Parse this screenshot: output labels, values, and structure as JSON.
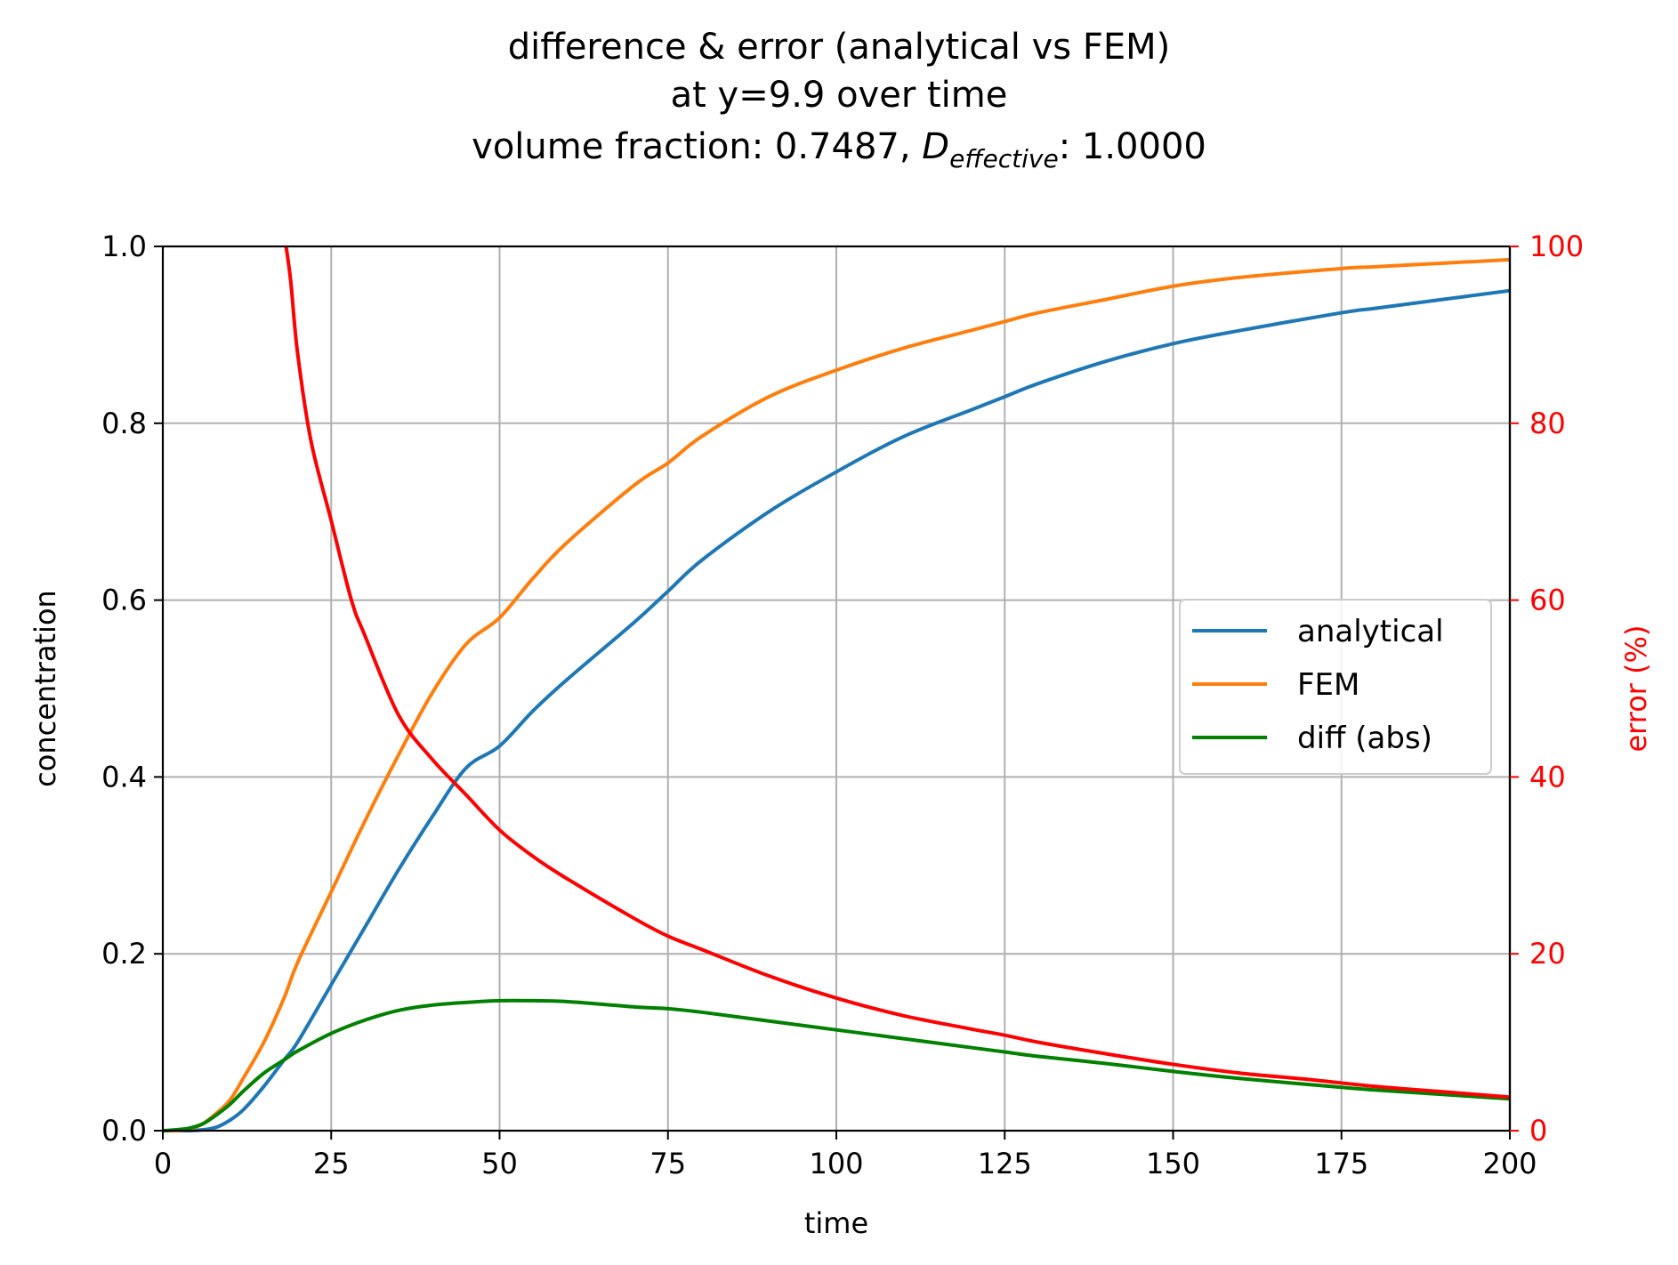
{
  "chart_data": {
    "type": "line",
    "title": {
      "line1": "difference & error (analytical vs FEM)",
      "line2": "at y=9.9 over time",
      "line3_prefix": "volume fraction: 0.7487, ",
      "line3_symbol": "D",
      "line3_subscript": "effective",
      "line3_suffix": ": 1.0000"
    },
    "xlabel": "time",
    "ylabel": "concentration",
    "y2label": "error (%)",
    "xlim": [
      0,
      200
    ],
    "ylim": [
      0,
      1
    ],
    "y2lim": [
      0,
      100
    ],
    "x_ticks": [
      "0",
      "25",
      "50",
      "75",
      "100",
      "125",
      "150",
      "175",
      "200"
    ],
    "y_ticks": [
      "0.0",
      "0.2",
      "0.4",
      "0.6",
      "0.8",
      "1.0"
    ],
    "y2_ticks": [
      "0",
      "20",
      "40",
      "60",
      "80",
      "100"
    ],
    "grid": true,
    "legend_position": "center-right",
    "x": [
      0,
      2,
      4,
      6,
      8,
      10,
      12,
      15,
      18,
      20,
      25,
      30,
      35,
      40,
      45,
      50,
      55,
      60,
      70,
      75,
      80,
      90,
      100,
      110,
      120,
      125,
      130,
      140,
      150,
      160,
      175,
      180,
      190,
      200
    ],
    "series": [
      {
        "name": "analytical",
        "color": "#1f77b4",
        "axis": "left",
        "values": [
          0,
          0,
          0,
          0.001,
          0.004,
          0.012,
          0.024,
          0.05,
          0.08,
          0.1,
          0.165,
          0.23,
          0.295,
          0.355,
          0.41,
          0.435,
          0.475,
          0.51,
          0.575,
          0.61,
          0.645,
          0.7,
          0.745,
          0.785,
          0.815,
          0.83,
          0.845,
          0.87,
          0.89,
          0.905,
          0.925,
          0.93,
          0.94,
          0.95
        ]
      },
      {
        "name": "FEM",
        "color": "#ff7f0e",
        "axis": "left",
        "values": [
          0,
          0,
          0.002,
          0.008,
          0.02,
          0.035,
          0.06,
          0.1,
          0.15,
          0.19,
          0.27,
          0.35,
          0.425,
          0.495,
          0.55,
          0.58,
          0.625,
          0.665,
          0.73,
          0.755,
          0.785,
          0.83,
          0.86,
          0.885,
          0.905,
          0.915,
          0.925,
          0.94,
          0.955,
          0.965,
          0.975,
          0.977,
          0.981,
          0.985
        ]
      },
      {
        "name": "diff (abs)",
        "color": "#008000",
        "axis": "left",
        "values": [
          0,
          0.001,
          0.003,
          0.008,
          0.018,
          0.03,
          0.045,
          0.065,
          0.08,
          0.09,
          0.11,
          0.125,
          0.136,
          0.142,
          0.145,
          0.147,
          0.147,
          0.146,
          0.14,
          0.138,
          0.134,
          0.124,
          0.114,
          0.104,
          0.094,
          0.089,
          0.084,
          0.076,
          0.067,
          0.059,
          0.049,
          0.046,
          0.041,
          0.036
        ]
      },
      {
        "name": "",
        "color": "#ff0000",
        "axis": "right",
        "x": [
          18.3,
          19,
          20,
          22,
          25,
          28,
          30,
          35,
          40,
          45,
          50,
          55,
          60,
          70,
          75,
          80,
          90,
          100,
          110,
          120,
          125,
          130,
          140,
          150,
          160,
          170,
          180,
          190,
          200
        ],
        "values": [
          100,
          96,
          88,
          78,
          69,
          60,
          56,
          47,
          42,
          38,
          34,
          31,
          28.5,
          24,
          22,
          20.5,
          17.5,
          15,
          13,
          11.5,
          10.8,
          10,
          8.7,
          7.5,
          6.5,
          5.8,
          5,
          4.4,
          3.8
        ]
      }
    ]
  }
}
